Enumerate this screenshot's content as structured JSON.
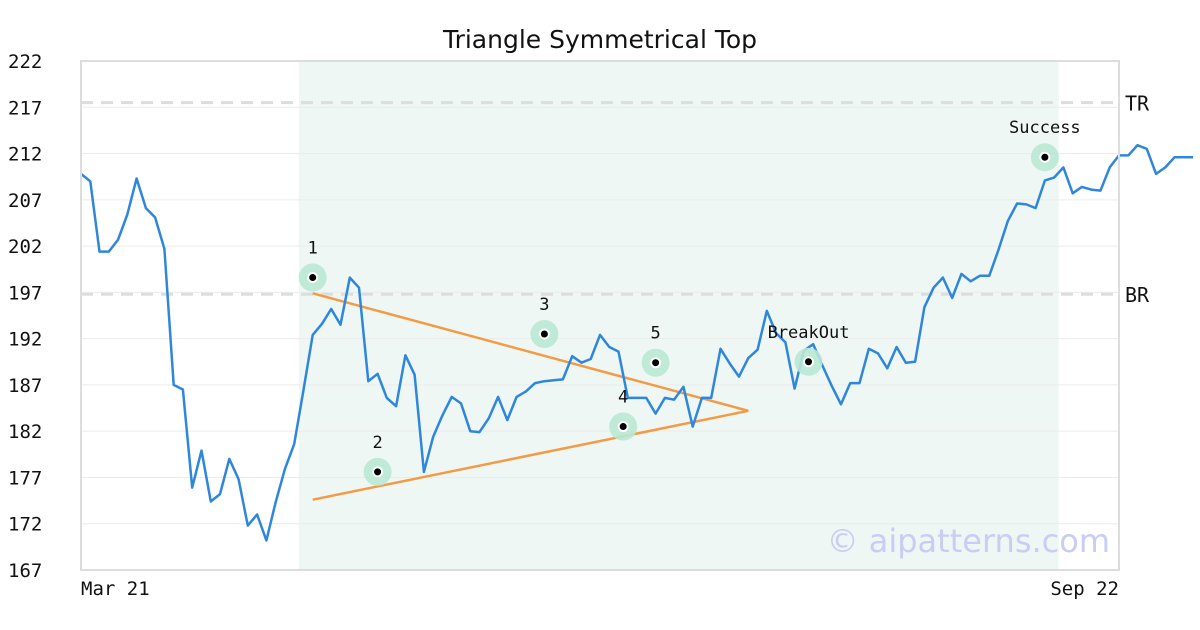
{
  "chart_data": {
    "type": "line",
    "title": "Triangle Symmetrical Top",
    "watermark": "© aipatterns.com",
    "x_tick_labels": [
      {
        "label": "Mar 21",
        "index": 0
      },
      {
        "label": "Sep 22",
        "index": 104
      }
    ],
    "y_ticks": [
      167,
      172,
      177,
      182,
      187,
      192,
      197,
      202,
      207,
      212,
      217,
      222
    ],
    "ylim": [
      167,
      222
    ],
    "xlim": [
      0,
      112
    ],
    "grid": "horizontal",
    "colors": {
      "price": "#2f86dd",
      "trendline": "#f59a44",
      "region": "#eef7f3",
      "marker_halo": "#b9e8d4",
      "reference": "#dddddd"
    },
    "highlight_region": {
      "x_start": 23.5,
      "x_end": 105.5
    },
    "reference_lines": [
      {
        "label": "TR",
        "value": 217.5
      },
      {
        "label": "BR",
        "value": 196.8
      }
    ],
    "series": [
      {
        "values": [
          209.8,
          209.0,
          201.4,
          201.4,
          202.7,
          205.4,
          209.3,
          206.1,
          205.1,
          201.7,
          187.0,
          186.5,
          175.9,
          179.9,
          174.4,
          175.2,
          179.0,
          176.8,
          171.8,
          173.0,
          170.2,
          174.3,
          177.9,
          180.6,
          186.4,
          192.4,
          193.6,
          195.2,
          193.5,
          198.6,
          197.5,
          187.4,
          188.2,
          185.6,
          184.7,
          190.2,
          188.1,
          177.6,
          181.4,
          183.7,
          185.7,
          185.0,
          182.0,
          181.9,
          183.4,
          185.7,
          183.2,
          185.7,
          186.3,
          187.2,
          187.4,
          187.5,
          187.6,
          190.1,
          189.4,
          189.8,
          192.4,
          191.1,
          190.6,
          185.6,
          185.6,
          185.6,
          183.9,
          185.6,
          185.4,
          186.8,
          182.5,
          185.6,
          185.6,
          190.9,
          189.3,
          187.9,
          189.9,
          190.8,
          195.0,
          192.6,
          191.6,
          186.6,
          190.7,
          191.4,
          189.1,
          186.9,
          184.9,
          187.2,
          187.2,
          190.9,
          190.4,
          188.8,
          191.1,
          189.4,
          189.5,
          195.4,
          197.5,
          198.6,
          196.4,
          199.0,
          198.2,
          198.8,
          198.8,
          201.6,
          204.7,
          206.6,
          206.5,
          206.1,
          209.1,
          209.4,
          210.5,
          207.7,
          208.4,
          208.1,
          208.0,
          210.5,
          211.8,
          211.8,
          212.9,
          212.5,
          209.8,
          210.5,
          211.6,
          211.6,
          211.6
        ]
      }
    ],
    "trendlines": [
      {
        "from": [
          25,
          196.9
        ],
        "to": [
          72,
          184.2
        ]
      },
      {
        "from": [
          25,
          174.6
        ],
        "to": [
          72,
          184.2
        ]
      }
    ],
    "points": [
      {
        "label": "1",
        "x": 25,
        "y": 198.6
      },
      {
        "label": "2",
        "x": 32,
        "y": 177.6
      },
      {
        "label": "3",
        "x": 50,
        "y": 192.5
      },
      {
        "label": "4",
        "x": 58.5,
        "y": 182.5
      },
      {
        "label": "5",
        "x": 62,
        "y": 189.4
      },
      {
        "label": "BreakOut",
        "x": 78.5,
        "y": 189.5
      },
      {
        "label": "Success",
        "x": 104,
        "y": 211.6
      }
    ]
  }
}
